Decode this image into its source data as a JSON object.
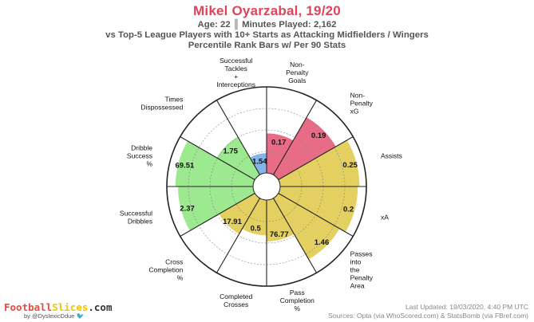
{
  "header": {
    "title": "Mikel Oyarzabal, 19/20",
    "subtitle_1": "Age: 22 ║ Minutes Played: 2,162",
    "subtitle_2": "vs Top-5 League Players with 10+ Starts as Attacking Midfielders / Wingers",
    "subtitle_3": "Percentile Rank Bars w/ Per 90 Stats"
  },
  "footer": {
    "brand_part1": "Football",
    "brand_part2": "Slices",
    "brand_part3": ".com",
    "handle": "by @DyslexicDdue",
    "handle_icon": "twitter-bird-icon",
    "updated": "Last Updated: 19/03/2020, 4:40 PM UTC",
    "sources": "Sources: Opta (via WhoScored.com) & StatsBomb (via FBref.com)"
  },
  "colors": {
    "title": "#e0435c",
    "attacking": "#e8647f",
    "creation": "#e3cd57",
    "passing": "#e3cd57",
    "dribbling": "#98e88a",
    "defending": "#7fb0e8"
  },
  "chart_data": {
    "type": "radar-bar",
    "rlim": [
      0,
      100
    ],
    "grid": true,
    "categories": [
      {
        "label": "Non-\nPenalty\nGoals",
        "value": "0.17",
        "percentile": 46,
        "group": "attacking"
      },
      {
        "label": "Non-\nPenalty\nxG",
        "value": "0.19",
        "percentile": 77,
        "group": "attacking"
      },
      {
        "label": "Assists",
        "value": "0.25",
        "percentile": 92,
        "group": "creation"
      },
      {
        "label": "xA",
        "value": "0.2",
        "percentile": 90,
        "group": "creation"
      },
      {
        "label": "Passes\ninto\nthe\nPenalty\nArea",
        "value": "1.46",
        "percentile": 82,
        "group": "creation"
      },
      {
        "label": "Pass\nCompletion\n%",
        "value": "76.77",
        "percentile": 48,
        "group": "passing"
      },
      {
        "label": "Completed\nCrosses",
        "value": "0.5",
        "percentile": 41,
        "group": "passing"
      },
      {
        "label": "Cross\nCompletion\n%",
        "value": "17.91",
        "percentile": 48,
        "group": "passing"
      },
      {
        "label": "Successful\nDribbles",
        "value": "2.37",
        "percentile": 87,
        "group": "dribbling"
      },
      {
        "label": "Dribble\nSuccess\n%",
        "value": "69.51",
        "percentile": 90,
        "group": "dribbling"
      },
      {
        "label": "Times\nDispossessed",
        "value": "1.75",
        "percentile": 51,
        "group": "dribbling"
      },
      {
        "label": "Successful\nTackles\n+\nInterceptions",
        "value": "1.54",
        "percentile": 23,
        "group": "defending"
      }
    ]
  }
}
